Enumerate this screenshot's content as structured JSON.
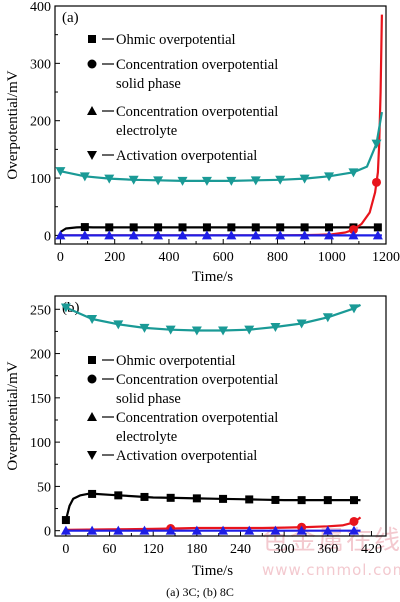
{
  "caption": "(a) 3C; (b) 8C",
  "watermark": {
    "text": "色金属在线",
    "url": "www.cnnmol.com"
  },
  "colors": {
    "ohmic": "#000000",
    "solid": "#e8141c",
    "electrolyte": "#1e1ee6",
    "activation": "#1a9a96"
  },
  "chart_data": [
    {
      "type": "line",
      "panel_label": "(a)",
      "xlabel": "Time/s",
      "ylabel": "Overpotential/mV",
      "xlim": [
        -20,
        1200
      ],
      "ylim": [
        -15,
        400
      ],
      "xticks": [
        0,
        200,
        400,
        600,
        800,
        1000,
        1200
      ],
      "yticks": [
        0,
        100,
        200,
        300,
        400
      ],
      "legend_position": "upper-left",
      "series": [
        {
          "name": "Ohmic overpotential",
          "legend": [
            "Ohmic overpotential"
          ],
          "marker": "square",
          "color": "#000000",
          "x": [
            0,
            20,
            60,
            90,
            120,
            180,
            270,
            360,
            450,
            540,
            630,
            720,
            810,
            900,
            990,
            1080,
            1170
          ],
          "y": [
            6,
            12,
            14,
            14.5,
            14,
            14,
            14,
            14,
            14,
            14,
            14,
            14,
            14,
            14,
            14,
            14,
            14
          ],
          "marker_x": [
            90,
            180,
            270,
            360,
            450,
            540,
            630,
            720,
            810,
            900,
            990,
            1080,
            1170
          ]
        },
        {
          "name": "Concentration overpotential solid phase",
          "legend": [
            "Concentration overpotential",
            "solid phase"
          ],
          "marker": "circle",
          "color": "#e8141c",
          "x": [
            0,
            200,
            400,
            600,
            800,
            900,
            950,
            1000,
            1050,
            1080,
            1110,
            1140,
            1160,
            1170,
            1175,
            1180,
            1185
          ],
          "y": [
            0,
            0,
            0,
            0,
            0,
            0.5,
            1,
            2,
            5,
            10,
            20,
            40,
            75,
            110,
            160,
            250,
            385
          ],
          "marker_x": [
            1080,
            1165
          ]
        },
        {
          "name": "Concentration overpotential electrolyte",
          "legend": [
            "Concentration overpotential",
            "electrolyte"
          ],
          "marker": "triangle-up",
          "color": "#1e1ee6",
          "x": [
            0,
            100,
            200,
            300,
            400,
            500,
            600,
            700,
            800,
            900,
            1000,
            1100,
            1185
          ],
          "y": [
            0,
            0,
            0,
            0,
            0,
            0,
            0,
            0,
            0,
            0,
            0,
            0,
            0
          ],
          "marker_x": [
            0,
            90,
            180,
            270,
            360,
            450,
            540,
            630,
            720,
            810,
            900,
            990,
            1080,
            1170
          ]
        },
        {
          "name": "Activation overpotential",
          "legend": [
            "Activation overpotential"
          ],
          "marker": "triangle-down",
          "color": "#1a9a96",
          "x": [
            0,
            90,
            180,
            270,
            360,
            450,
            540,
            630,
            720,
            810,
            900,
            990,
            1080,
            1130,
            1165,
            1185
          ],
          "y": [
            112,
            103,
            99,
            97,
            96,
            95,
            95,
            95,
            96,
            97,
            99,
            103,
            110,
            120,
            160,
            215
          ],
          "marker_x": [
            0,
            90,
            180,
            270,
            360,
            450,
            540,
            630,
            720,
            810,
            900,
            990,
            1080,
            1165
          ]
        }
      ]
    },
    {
      "type": "line",
      "panel_label": "(b)",
      "xlabel": "Time/s",
      "ylabel": "Overpotential/mV",
      "xlim": [
        -15,
        440
      ],
      "ylim": [
        -6,
        265
      ],
      "xticks": [
        0,
        60,
        120,
        180,
        240,
        300,
        360,
        420
      ],
      "yticks": [
        0,
        50,
        100,
        150,
        200,
        250
      ],
      "legend_position": "center-left",
      "series": [
        {
          "name": "Ohmic overpotential",
          "legend": [
            "Ohmic overpotential"
          ],
          "marker": "square",
          "color": "#000000",
          "x": [
            0,
            5,
            10,
            20,
            30,
            40,
            60,
            90,
            120,
            150,
            180,
            210,
            240,
            270,
            300,
            330,
            360,
            390,
            405
          ],
          "y": [
            12,
            28,
            36,
            40,
            41.5,
            41.5,
            40.5,
            39,
            37.5,
            37,
            36.5,
            36,
            35.5,
            35,
            34.5,
            34.5,
            34.5,
            34.5,
            34.5
          ],
          "marker_x": [
            0,
            36,
            72,
            108,
            144,
            180,
            216,
            252,
            288,
            324,
            360,
            396
          ]
        },
        {
          "name": "Concentration overpotential solid phase",
          "legend": [
            "Concentration overpotential",
            "solid phase"
          ],
          "marker": "circle",
          "color": "#e8141c",
          "x": [
            0,
            60,
            120,
            150,
            180,
            210,
            240,
            270,
            300,
            330,
            360,
            380,
            390,
            400,
            405
          ],
          "y": [
            1,
            1.5,
            2,
            2.5,
            3,
            3,
            3,
            3,
            3.5,
            4,
            5,
            6,
            8,
            12,
            15
          ],
          "marker_x": [
            144,
            324,
            396
          ]
        },
        {
          "name": "Concentration overpotential electrolyte",
          "legend": [
            "Concentration overpotential",
            "electrolyte"
          ],
          "marker": "triangle-up",
          "color": "#1e1ee6",
          "x": [
            0,
            60,
            120,
            180,
            240,
            300,
            360,
            405
          ],
          "y": [
            0,
            0,
            0,
            0,
            0,
            0,
            0,
            0
          ],
          "marker_x": [
            0,
            36,
            72,
            108,
            144,
            180,
            216,
            252,
            288,
            324,
            360,
            396
          ]
        },
        {
          "name": "Activation overpotential",
          "legend": [
            "Activation overpotential"
          ],
          "marker": "triangle-down",
          "color": "#1a9a96",
          "x": [
            0,
            36,
            72,
            108,
            144,
            180,
            216,
            252,
            288,
            324,
            360,
            396,
            405
          ],
          "y": [
            252,
            239,
            233,
            229,
            227,
            226,
            226,
            227,
            230,
            234,
            241,
            251,
            255
          ],
          "marker_x": [
            0,
            36,
            72,
            108,
            144,
            180,
            216,
            252,
            288,
            324,
            360,
            396
          ]
        }
      ]
    }
  ]
}
